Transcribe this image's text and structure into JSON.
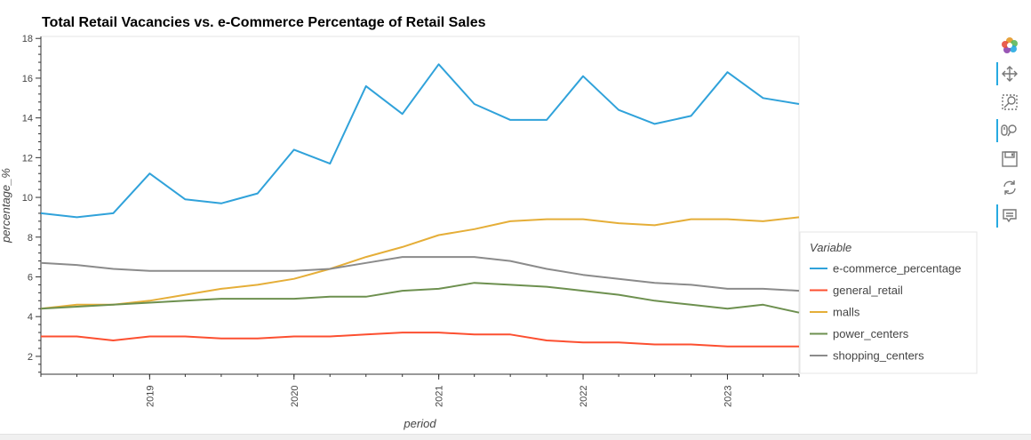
{
  "chart_data": {
    "type": "line",
    "title": "Total Retail Vacancies vs. e-Commerce Percentage of Retail Sales",
    "xlabel": "period",
    "ylabel": "percentage_%",
    "x": [
      "2018-04-01",
      "2018-07-01",
      "2018-10-01",
      "2019-01-01",
      "2019-04-01",
      "2019-07-01",
      "2019-10-01",
      "2020-01-01",
      "2020-04-01",
      "2020-07-01",
      "2020-10-01",
      "2021-01-01",
      "2021-04-01",
      "2021-07-01",
      "2021-10-01",
      "2022-01-01",
      "2022-04-01",
      "2022-07-01",
      "2022-10-01",
      "2023-01-01",
      "2023-04-01",
      "2023-07-01"
    ],
    "x_tick_labels": [
      "2019",
      "2020",
      "2021",
      "2022",
      "2023"
    ],
    "y_ticks": [
      2,
      4,
      6,
      8,
      10,
      12,
      14,
      16,
      18
    ],
    "xlim": [
      "2018-04-01",
      "2023-07-01"
    ],
    "ylim": [
      1.1,
      18.1
    ],
    "legend_title": "Variable",
    "legend_position": "right",
    "series": [
      {
        "name": "e-commerce_percentage",
        "color": "#30a2da",
        "values": [
          9.2,
          9.0,
          9.2,
          11.2,
          9.9,
          9.7,
          10.2,
          12.4,
          11.7,
          15.6,
          14.2,
          16.7,
          14.7,
          13.9,
          13.9,
          16.1,
          14.4,
          13.7,
          14.1,
          16.3,
          15.0,
          14.7
        ]
      },
      {
        "name": "general_retail",
        "color": "#fc4f30",
        "values": [
          3.0,
          3.0,
          2.8,
          3.0,
          3.0,
          2.9,
          2.9,
          3.0,
          3.0,
          3.1,
          3.2,
          3.2,
          3.1,
          3.1,
          2.8,
          2.7,
          2.7,
          2.6,
          2.6,
          2.5,
          2.5,
          2.5
        ]
      },
      {
        "name": "malls",
        "color": "#e5ae38",
        "values": [
          4.4,
          4.6,
          4.6,
          4.8,
          5.1,
          5.4,
          5.6,
          5.9,
          6.4,
          7.0,
          7.5,
          8.1,
          8.4,
          8.8,
          8.9,
          8.9,
          8.7,
          8.6,
          8.9,
          8.9,
          8.8,
          9.0
        ]
      },
      {
        "name": "power_centers",
        "color": "#6d904f",
        "values": [
          4.4,
          4.5,
          4.6,
          4.7,
          4.8,
          4.9,
          4.9,
          4.9,
          5.0,
          5.0,
          5.3,
          5.4,
          5.7,
          5.6,
          5.5,
          5.3,
          5.1,
          4.8,
          4.6,
          4.4,
          4.6,
          4.2
        ]
      },
      {
        "name": "shopping_centers",
        "color": "#8b8b8b",
        "values": [
          6.7,
          6.6,
          6.4,
          6.3,
          6.3,
          6.3,
          6.3,
          6.3,
          6.4,
          6.7,
          7.0,
          7.0,
          7.0,
          6.8,
          6.4,
          6.1,
          5.9,
          5.7,
          5.6,
          5.4,
          5.4,
          5.3
        ]
      }
    ]
  },
  "toolbar": {
    "tools": [
      {
        "name": "bokeh-logo-icon",
        "active": false
      },
      {
        "name": "pan-tool-icon",
        "active": true
      },
      {
        "name": "box-zoom-tool-icon",
        "active": false
      },
      {
        "name": "wheel-zoom-tool-icon",
        "active": true
      },
      {
        "name": "save-tool-icon",
        "active": false
      },
      {
        "name": "reset-tool-icon",
        "active": false
      },
      {
        "name": "hover-tool-icon",
        "active": true
      }
    ]
  }
}
